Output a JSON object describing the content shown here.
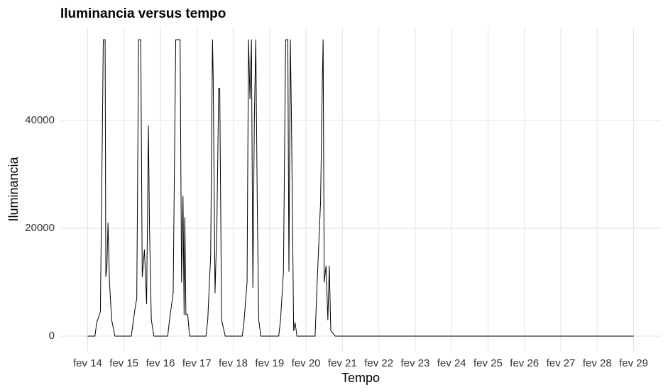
{
  "chart_data": {
    "type": "line",
    "title": "Iluminancia versus tempo",
    "x_label": "Tempo",
    "y_label": "Iluminancia",
    "x": [
      14,
      14.2,
      14.25,
      14.35,
      14.4,
      14.43,
      14.48,
      14.5,
      14.53,
      14.56,
      14.6,
      14.66,
      14.75,
      15.2,
      15.3,
      15.35,
      15.4,
      15.46,
      15.5,
      15.56,
      15.62,
      15.67,
      15.7,
      15.75,
      15.82,
      16.2,
      16.25,
      16.35,
      16.42,
      16.54,
      16.58,
      16.62,
      16.65,
      16.67,
      16.7,
      16.75,
      16.8,
      17.25,
      17.3,
      17.38,
      17.43,
      17.45,
      17.5,
      17.55,
      17.6,
      17.63,
      17.68,
      17.78,
      18.25,
      18.3,
      18.38,
      18.42,
      18.46,
      18.5,
      18.54,
      18.58,
      18.62,
      18.66,
      18.7,
      18.76,
      19.25,
      19.3,
      19.38,
      19.44,
      19.5,
      19.53,
      19.57,
      19.6,
      19.66,
      19.7,
      19.75,
      20.25,
      20.3,
      20.4,
      20.45,
      20.47,
      20.5,
      20.55,
      20.6,
      20.64,
      20.68,
      20.8,
      29
    ],
    "series": [
      {
        "name": "Iluminancia",
        "color": "#000000",
        "values": [
          0,
          0,
          2500,
          4500,
          35000,
          55000,
          55000,
          11000,
          13000,
          21000,
          10000,
          3000,
          0,
          0,
          5000,
          7000,
          55000,
          55000,
          11000,
          16000,
          6000,
          39000,
          20000,
          3000,
          0,
          0,
          3000,
          8000,
          55000,
          55000,
          10000,
          26000,
          4000,
          22000,
          4000,
          4000,
          0,
          0,
          3000,
          15000,
          55000,
          48000,
          8000,
          20000,
          46000,
          46000,
          3000,
          0,
          0,
          3000,
          10000,
          55000,
          44000,
          55000,
          9000,
          40000,
          55000,
          25000,
          3000,
          0,
          0,
          3000,
          12000,
          55000,
          55000,
          12000,
          55000,
          40000,
          1000,
          2500,
          0,
          0,
          9000,
          25000,
          48000,
          55000,
          10000,
          13000,
          3000,
          13000,
          1000,
          0,
          0
        ]
      }
    ],
    "xlim": [
      13.25,
      29.75
    ],
    "xticks": [
      {
        "value": 14,
        "label": "fev 14"
      },
      {
        "value": 15,
        "label": "fev 15"
      },
      {
        "value": 16,
        "label": "fev 16"
      },
      {
        "value": 17,
        "label": "fev 17"
      },
      {
        "value": 18,
        "label": "fev 18"
      },
      {
        "value": 19,
        "label": "fev 19"
      },
      {
        "value": 20,
        "label": "fev 20"
      },
      {
        "value": 21,
        "label": "fev 21"
      },
      {
        "value": 22,
        "label": "fev 22"
      },
      {
        "value": 23,
        "label": "fev 23"
      },
      {
        "value": 24,
        "label": "fev 24"
      },
      {
        "value": 25,
        "label": "fev 25"
      },
      {
        "value": 26,
        "label": "fev 26"
      },
      {
        "value": 27,
        "label": "fev 27"
      },
      {
        "value": 28,
        "label": "fev 28"
      },
      {
        "value": 29,
        "label": "fev 29"
      }
    ],
    "ylim": [
      -2750,
      57370
    ],
    "yticks": [
      0,
      20000,
      40000
    ],
    "grid": true
  }
}
